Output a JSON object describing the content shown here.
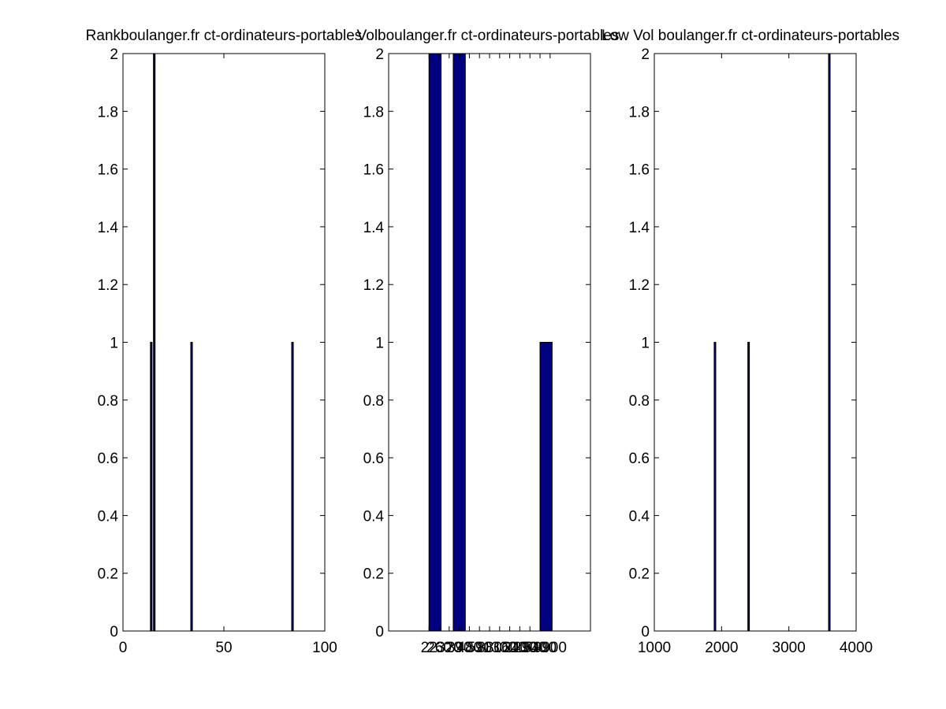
{
  "figure": {
    "background": "#ffffff",
    "bar_color": "#000080",
    "axis_color": "#000000"
  },
  "chart_data": [
    {
      "type": "bar",
      "title": "Rankboulanger.fr ct-ordinateurs-portables",
      "xlim": [
        0,
        100
      ],
      "ylim": [
        0,
        2
      ],
      "xticks": [
        0,
        50,
        100
      ],
      "xtick_labels": [
        "0",
        "50",
        "100"
      ],
      "yticks": [
        0,
        0.2,
        0.4,
        0.6,
        0.8,
        1,
        1.2,
        1.4,
        1.6,
        1.8,
        2
      ],
      "ytick_labels": [
        "0",
        "0.2",
        "0.4",
        "0.6",
        "0.8",
        "1",
        "1.2",
        "1.4",
        "1.6",
        "1.8",
        "2"
      ],
      "bar_width": 0.8,
      "bars": [
        {
          "x": 14,
          "value": 1
        },
        {
          "x": 15.5,
          "value": 2
        },
        {
          "x": 34,
          "value": 1
        },
        {
          "x": 84,
          "value": 1
        }
      ],
      "grid": false
    },
    {
      "type": "bar",
      "title": "Volboulanger.fr ct-ordinateurs-portables",
      "xlim": [
        0,
        10
      ],
      "ylim": [
        0,
        2
      ],
      "xticks": [
        2.0,
        2.5,
        3.0,
        3.5,
        4.0,
        4.5,
        5.0,
        5.5,
        6.0,
        6.5,
        7.0,
        7.5,
        8.0
      ],
      "xtick_labels": [
        "22",
        "260",
        "320",
        "390",
        "480",
        "590",
        "880",
        "1300",
        "1600",
        "2400",
        "2900",
        "5400",
        "9900"
      ],
      "yticks": [
        0,
        0.2,
        0.4,
        0.6,
        0.8,
        1,
        1.2,
        1.4,
        1.6,
        1.8,
        2
      ],
      "ytick_labels": [
        "0",
        "0.2",
        "0.4",
        "0.6",
        "0.8",
        "1",
        "1.2",
        "1.4",
        "1.6",
        "1.8",
        "2"
      ],
      "bar_width": 0.6,
      "bars": [
        {
          "x": 2.3,
          "value": 2
        },
        {
          "x": 3.5,
          "value": 2
        },
        {
          "x": 7.8,
          "value": 1
        }
      ],
      "grid": false
    },
    {
      "type": "bar",
      "title": "Low Vol boulanger.fr ct-ordinateurs-portables",
      "xlim": [
        1000,
        4000
      ],
      "ylim": [
        0,
        2
      ],
      "xticks": [
        1000,
        2000,
        3000,
        4000
      ],
      "xtick_labels": [
        "1000",
        "2000",
        "3000",
        "4000"
      ],
      "yticks": [
        0,
        0.2,
        0.4,
        0.6,
        0.8,
        1,
        1.2,
        1.4,
        1.6,
        1.8,
        2
      ],
      "ytick_labels": [
        "0",
        "0.2",
        "0.4",
        "0.6",
        "0.8",
        "1",
        "1.2",
        "1.4",
        "1.6",
        "1.8",
        "2"
      ],
      "bar_width": 20,
      "bars": [
        {
          "x": 1900,
          "value": 1
        },
        {
          "x": 2400,
          "value": 1
        },
        {
          "x": 3600,
          "value": 2
        }
      ],
      "grid": false
    }
  ]
}
